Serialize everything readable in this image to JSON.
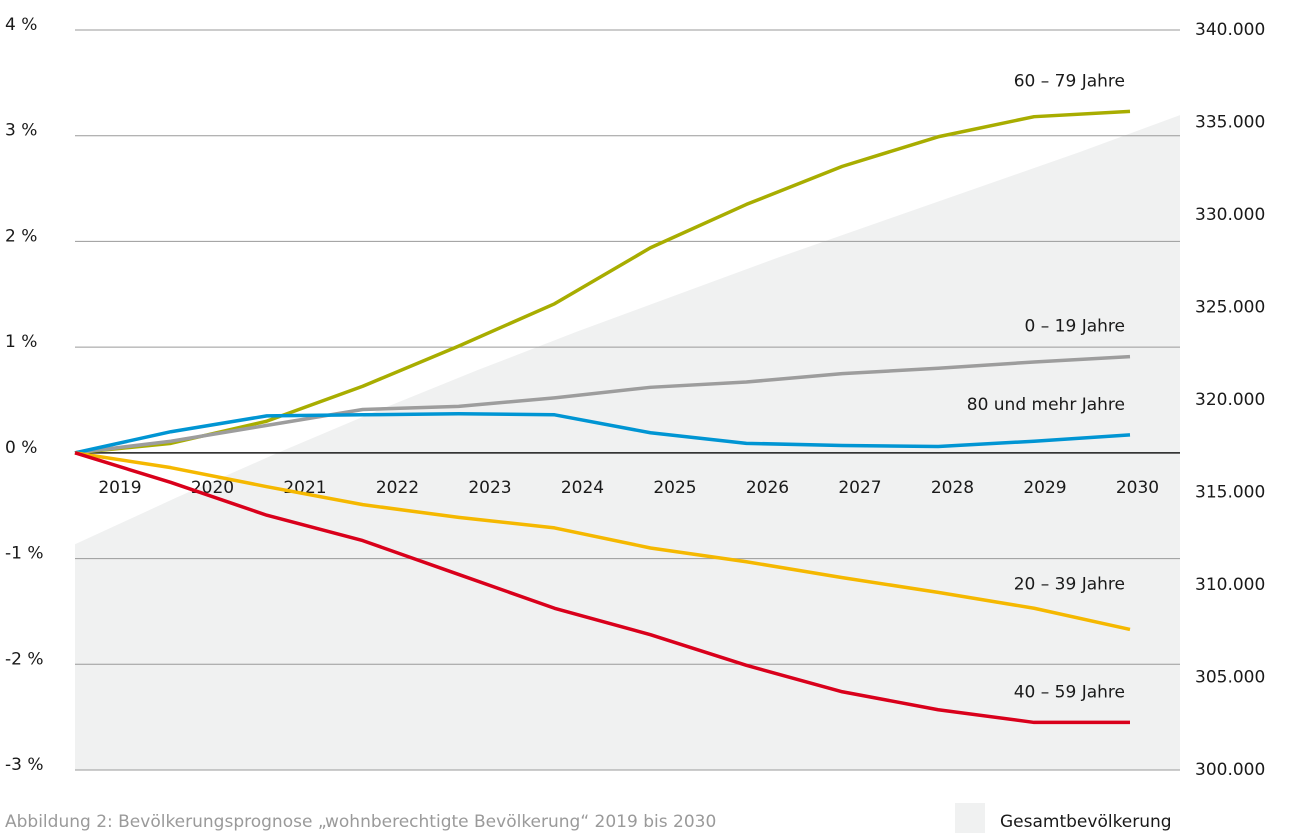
{
  "chart_data": {
    "type": "line",
    "caption": "Abbildung 2: Bevölkerungsprognose „wohnberechtigte Bevölkerung“ 2019 bis 2030",
    "categories": [
      "2019",
      "2020",
      "2021",
      "2022",
      "2023",
      "2024",
      "2025",
      "2026",
      "2027",
      "2028",
      "2029",
      "2030"
    ],
    "ylim": [
      -3,
      4
    ],
    "yticks": [
      {
        "value": -3,
        "label": "-3 %"
      },
      {
        "value": -2,
        "label": "-2 %"
      },
      {
        "value": -1,
        "label": "-1 %"
      },
      {
        "value": 0,
        "label": "0 %"
      },
      {
        "value": 1,
        "label": "1 %"
      },
      {
        "value": 2,
        "label": "2 %"
      },
      {
        "value": 3,
        "label": "3 %"
      },
      {
        "value": 4,
        "label": "4 %"
      }
    ],
    "y2lim": [
      300000,
      340000
    ],
    "y2ticks": [
      {
        "value": 300000,
        "label": "300.000"
      },
      {
        "value": 305000,
        "label": "305.000"
      },
      {
        "value": 310000,
        "label": "310.000"
      },
      {
        "value": 315000,
        "label": "315.000"
      },
      {
        "value": 320000,
        "label": "320.000"
      },
      {
        "value": 325000,
        "label": "325.000"
      },
      {
        "value": 330000,
        "label": "330.000"
      },
      {
        "value": 335000,
        "label": "335.000"
      },
      {
        "value": 340000,
        "label": "340.000"
      }
    ],
    "grid": true,
    "series": [
      {
        "name": "Gesamtbevölkerung",
        "type": "area",
        "axis": "y2",
        "color": "#f0f1f1",
        "values": [
          312200,
          314700,
          317100,
          319400,
          321600,
          323700,
          325700,
          327700,
          329600,
          331500,
          333400,
          335400
        ]
      },
      {
        "name": "60 – 79 Jahre",
        "color": "#a8ad00",
        "values": [
          0,
          0.09,
          0.3,
          0.63,
          1.01,
          1.41,
          1.94,
          2.35,
          2.71,
          2.99,
          3.18,
          3.23
        ]
      },
      {
        "name": "0 – 19 Jahre",
        "color": "#9d9d9d",
        "values": [
          0,
          0.11,
          0.26,
          0.41,
          0.44,
          0.52,
          0.62,
          0.67,
          0.75,
          0.8,
          0.86,
          0.91
        ]
      },
      {
        "name": "80 und mehr Jahre",
        "color": "#0095d3",
        "values": [
          0,
          0.2,
          0.35,
          0.36,
          0.37,
          0.36,
          0.19,
          0.09,
          0.07,
          0.06,
          0.11,
          0.17
        ]
      },
      {
        "name": "20 – 39 Jahre",
        "color": "#f5b800",
        "values": [
          0,
          -0.14,
          -0.32,
          -0.49,
          -0.61,
          -0.71,
          -0.9,
          -1.03,
          -1.18,
          -1.32,
          -1.47,
          -1.67
        ]
      },
      {
        "name": "40 – 59 Jahre",
        "color": "#d9001b",
        "values": [
          0,
          -0.28,
          -0.59,
          -0.83,
          -1.15,
          -1.47,
          -1.72,
          -2.01,
          -2.26,
          -2.43,
          -2.55,
          -2.55
        ]
      }
    ]
  }
}
